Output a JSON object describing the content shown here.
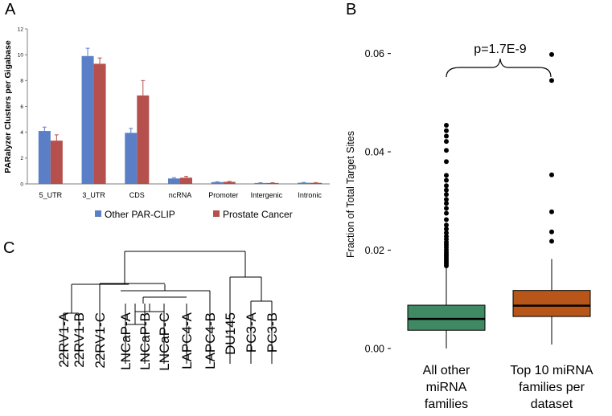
{
  "panel_labels": {
    "a": "A",
    "b": "B",
    "c": "C"
  },
  "colors": {
    "other_parclip": "#5b7fc6",
    "prostate_cancer": "#b5504c",
    "all_other_box": "#3f8a63",
    "top10_box": "#b85518"
  },
  "chart_data": [
    {
      "id": "panel-a",
      "type": "bar",
      "title": "",
      "ylabel": "PARalyzer Clusters per Gigabase",
      "xlabel": "",
      "ylim": [
        0,
        12
      ],
      "yticks": [
        "0",
        "2",
        "4",
        "6",
        "8",
        "10",
        "12"
      ],
      "categories": [
        "5_UTR",
        "3_UTR",
        "CDS",
        "ncRNA",
        "Promoter",
        "Intergenic",
        "Intronic"
      ],
      "series": [
        {
          "name": "Other PAR-CLIP",
          "values": [
            4.1,
            9.9,
            3.95,
            0.42,
            0.14,
            0.07,
            0.09
          ],
          "errors": [
            0.3,
            0.6,
            0.35,
            0.06,
            0.03,
            0.02,
            0.02
          ]
        },
        {
          "name": "Prostate Cancer",
          "values": [
            3.35,
            9.3,
            6.85,
            0.48,
            0.16,
            0.07,
            0.08
          ],
          "errors": [
            0.45,
            0.45,
            1.15,
            0.1,
            0.03,
            0.02,
            0.02
          ]
        }
      ],
      "legend": [
        "Other PAR-CLIP",
        "Prostate Cancer"
      ],
      "legend_position": "bottom"
    },
    {
      "id": "panel-b",
      "type": "box",
      "title": "",
      "ylabel": "Fraction of Total Target Sites",
      "ylim": [
        -0.001,
        0.065
      ],
      "yticks": [
        "0.00",
        "0.02",
        "0.04",
        "0.06"
      ],
      "categories": [
        {
          "line1": "All other",
          "line2": "miRNA",
          "line3": "families"
        },
        {
          "line1": "Top 10 miRNA",
          "line2": "families per",
          "line3": "dataset"
        }
      ],
      "boxes": [
        {
          "min": 0.0,
          "q1": 0.0037,
          "median": 0.006,
          "q3": 0.0088,
          "max": 0.0165,
          "outliers": [
            0.0168,
            0.0172,
            0.0176,
            0.018,
            0.0184,
            0.0188,
            0.0192,
            0.0196,
            0.0201,
            0.0206,
            0.0211,
            0.0216,
            0.0222,
            0.0228,
            0.0235,
            0.0243,
            0.0251,
            0.0262,
            0.0275,
            0.0285,
            0.0295,
            0.0303,
            0.0313,
            0.0322,
            0.0331,
            0.0342,
            0.0352,
            0.038,
            0.0403,
            0.0421,
            0.0432,
            0.0443,
            0.0454
          ]
        },
        {
          "min": 0.0008,
          "q1": 0.0065,
          "median": 0.0087,
          "q3": 0.0118,
          "max": 0.0182,
          "outliers": [
            0.0218,
            0.0237,
            0.0278,
            0.0353,
            0.0545,
            0.0598
          ]
        }
      ],
      "annotation": "p=1.7E-9"
    },
    {
      "id": "panel-c",
      "type": "dendrogram",
      "leaves": [
        "22RV1-A",
        "22RV1-B",
        "22RV1-C",
        "LNCaP-A",
        "LNCaP-B",
        "LNCaP-C",
        "LAPC4-A",
        "LAPC4-B",
        "DU145",
        "PC3-A",
        "PC3-B"
      ]
    }
  ]
}
